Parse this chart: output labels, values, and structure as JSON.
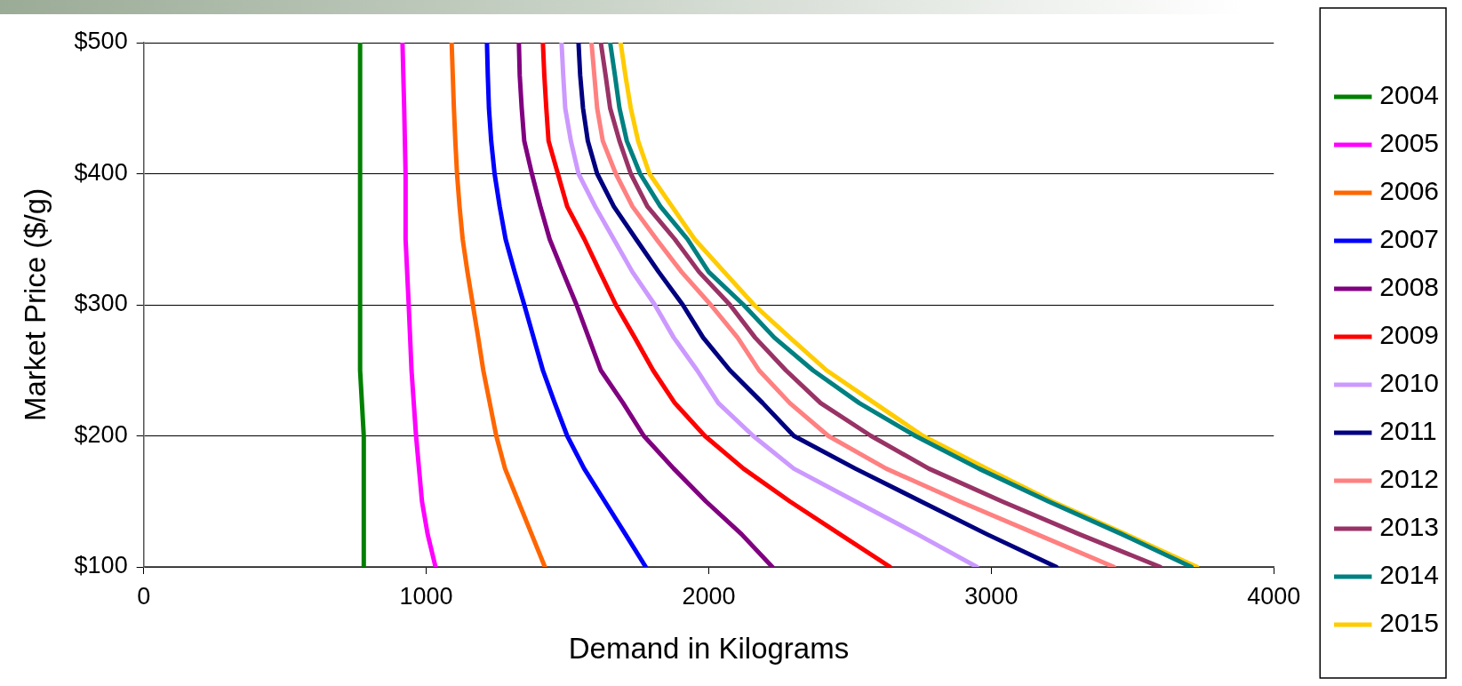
{
  "chart_data": {
    "type": "line",
    "xlabel": "Demand in Kilograms",
    "ylabel": "Market Price ($/g)",
    "xlim": [
      0,
      4000
    ],
    "xticks": [
      0,
      1000,
      2000,
      3000,
      4000
    ],
    "ylim": [
      100,
      500
    ],
    "yticks": [
      {
        "value": 100,
        "label": "$100"
      },
      {
        "value": 200,
        "label": "$200"
      },
      {
        "value": 300,
        "label": "$300"
      },
      {
        "value": 400,
        "label": "$400"
      },
      {
        "value": 500,
        "label": "$500"
      }
    ],
    "grid": "y",
    "legend": "right",
    "marker": "none",
    "line_style": "solid",
    "series": [
      {
        "name": "2004",
        "color": "#008000",
        "x": [
          766,
          766,
          779,
          779
        ],
        "values": [
          500,
          250,
          200,
          100
        ]
      },
      {
        "name": "2005",
        "color": "#ff00ff",
        "x": [
          916,
          922,
          927,
          927,
          938,
          948,
          964,
          985,
          1005,
          1033
        ],
        "values": [
          500,
          450,
          400,
          350,
          300,
          250,
          200,
          150,
          125,
          100
        ]
      },
      {
        "name": "2006",
        "color": "#ff6600",
        "x": [
          1090,
          1094,
          1098,
          1103,
          1109,
          1118,
          1129,
          1146,
          1165,
          1184,
          1202,
          1225,
          1248,
          1279,
          1326,
          1373,
          1420
        ],
        "values": [
          500,
          475,
          450,
          425,
          400,
          375,
          350,
          325,
          300,
          275,
          250,
          225,
          200,
          175,
          150,
          125,
          100
        ]
      },
      {
        "name": "2007",
        "color": "#0000ff",
        "x": [
          1215,
          1218,
          1222,
          1230,
          1242,
          1260,
          1281,
          1313,
          1347,
          1380,
          1413,
          1455,
          1499,
          1559,
          1632,
          1705,
          1777
        ],
        "values": [
          500,
          475,
          450,
          425,
          400,
          375,
          350,
          325,
          300,
          275,
          250,
          225,
          200,
          175,
          150,
          125,
          100
        ]
      },
      {
        "name": "2008",
        "color": "#800080",
        "x": [
          1328,
          1331,
          1338,
          1347,
          1374,
          1404,
          1437,
          1484,
          1532,
          1575,
          1618,
          1697,
          1770,
          1876,
          1990,
          2116,
          2225
        ],
        "values": [
          500,
          475,
          450,
          425,
          400,
          375,
          350,
          325,
          300,
          275,
          250,
          225,
          200,
          175,
          150,
          125,
          100
        ]
      },
      {
        "name": "2009",
        "color": "#ff0000",
        "x": [
          1413,
          1418,
          1425,
          1433,
          1466,
          1499,
          1560,
          1615,
          1671,
          1738,
          1803,
          1880,
          1986,
          2123,
          2287,
          2464,
          2642
        ],
        "values": [
          500,
          475,
          450,
          425,
          400,
          375,
          350,
          325,
          300,
          275,
          250,
          225,
          200,
          175,
          150,
          125,
          100
        ]
      },
      {
        "name": "2010",
        "color": "#cc99ff",
        "x": [
          1479,
          1485,
          1492,
          1512,
          1539,
          1598,
          1664,
          1730,
          1809,
          1876,
          1959,
          2034,
          2157,
          2301,
          2519,
          2738,
          2949
        ],
        "values": [
          500,
          475,
          450,
          425,
          400,
          375,
          350,
          325,
          300,
          275,
          250,
          225,
          200,
          175,
          150,
          125,
          100
        ]
      },
      {
        "name": "2011",
        "color": "#000080",
        "x": [
          1539,
          1545,
          1555,
          1572,
          1605,
          1664,
          1743,
          1823,
          1908,
          1980,
          2075,
          2191,
          2301,
          2519,
          2751,
          2984,
          3230
        ],
        "values": [
          500,
          475,
          450,
          425,
          400,
          375,
          350,
          325,
          300,
          275,
          250,
          225,
          200,
          175,
          150,
          125,
          100
        ]
      },
      {
        "name": "2012",
        "color": "#ff8080",
        "x": [
          1585,
          1595,
          1605,
          1625,
          1671,
          1730,
          1815,
          1904,
          2007,
          2102,
          2178,
          2287,
          2423,
          2628,
          2888,
          3161,
          3434
        ],
        "values": [
          500,
          475,
          450,
          425,
          400,
          375,
          350,
          325,
          300,
          275,
          250,
          225,
          200,
          175,
          150,
          125,
          100
        ]
      },
      {
        "name": "2013",
        "color": "#993366",
        "x": [
          1618,
          1635,
          1651,
          1684,
          1724,
          1783,
          1880,
          1966,
          2075,
          2164,
          2273,
          2396,
          2574,
          2779,
          3038,
          3311,
          3598
        ],
        "values": [
          500,
          475,
          450,
          425,
          400,
          375,
          350,
          325,
          300,
          275,
          250,
          225,
          200,
          175,
          150,
          125,
          100
        ]
      },
      {
        "name": "2014",
        "color": "#008080",
        "x": [
          1651,
          1668,
          1684,
          1710,
          1757,
          1829,
          1925,
          2000,
          2123,
          2232,
          2369,
          2533,
          2731,
          2956,
          3202,
          3462,
          3708
        ],
        "values": [
          500,
          475,
          450,
          425,
          400,
          375,
          350,
          325,
          300,
          275,
          250,
          225,
          200,
          175,
          150,
          125,
          100
        ]
      },
      {
        "name": "2015",
        "color": "#ffcc00",
        "x": [
          1688,
          1705,
          1724,
          1750,
          1790,
          1870,
          1950,
          2055,
          2160,
          2287,
          2417,
          2587,
          2758,
          2984,
          3216,
          3475,
          3728
        ],
        "values": [
          500,
          475,
          450,
          425,
          400,
          375,
          350,
          325,
          300,
          275,
          250,
          225,
          200,
          175,
          150,
          125,
          100
        ]
      }
    ]
  }
}
